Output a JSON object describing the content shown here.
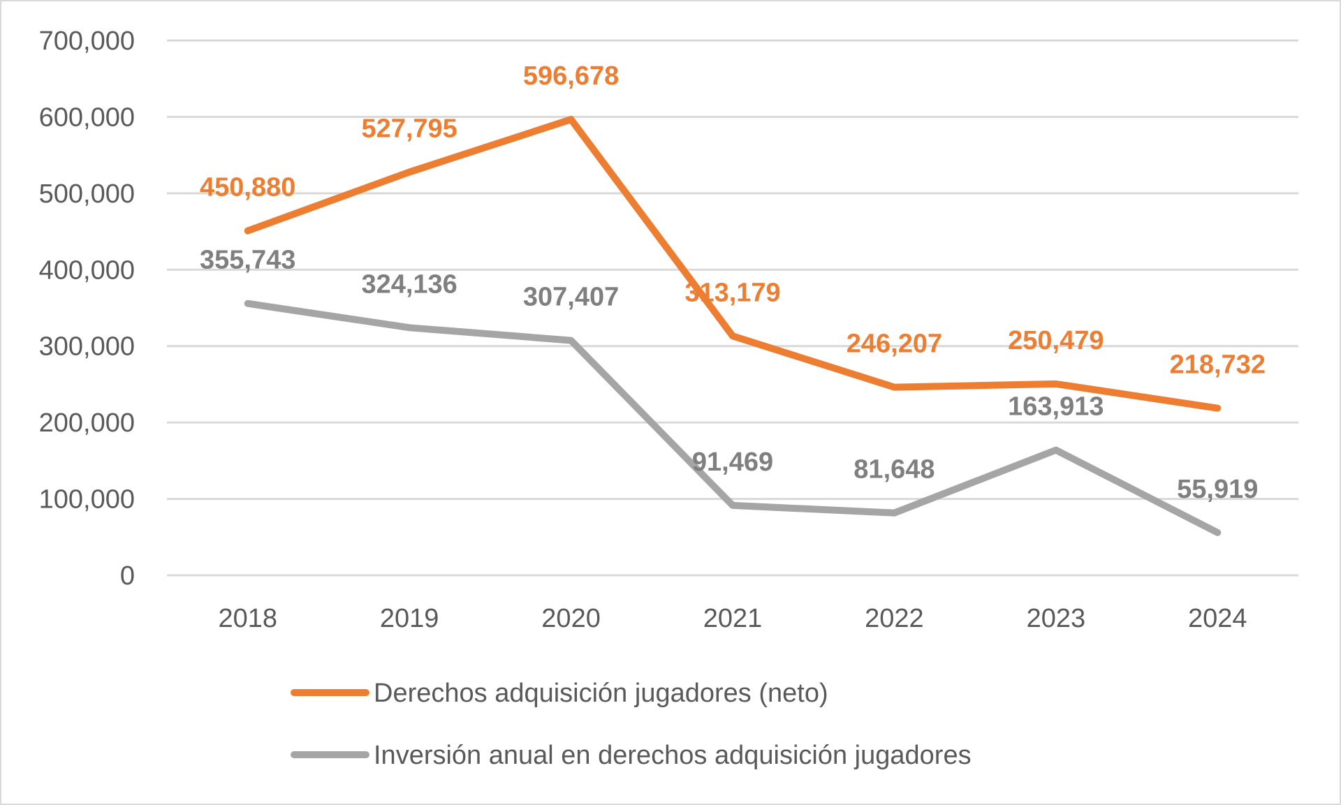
{
  "chart_data": {
    "type": "line",
    "title": "",
    "xlabel": "",
    "ylabel": "",
    "categories": [
      "2018",
      "2019",
      "2020",
      "2021",
      "2022",
      "2023",
      "2024"
    ],
    "ylim": [
      0,
      700000
    ],
    "yticks": [
      0,
      100000,
      200000,
      300000,
      400000,
      500000,
      600000,
      700000
    ],
    "ytick_labels": [
      "0",
      "100,000",
      "200,000",
      "300,000",
      "400,000",
      "500,000",
      "600,000",
      "700,000"
    ],
    "grid": true,
    "legend_position": "bottom",
    "series": [
      {
        "name": "Derechos adquisición jugadores (neto)",
        "color": "#ed7d31",
        "values": [
          450880,
          527795,
          596678,
          313179,
          246207,
          250479,
          218732
        ],
        "labels": [
          "450,880",
          "527,795",
          "596,678",
          "313,179",
          "246,207",
          "250,479",
          "218,732"
        ]
      },
      {
        "name": "Inversión anual en derechos adquisición jugadores",
        "color": "#a5a5a5",
        "label_color": "#7f7f7f",
        "values": [
          355743,
          324136,
          307407,
          91469,
          81648,
          163913,
          55919
        ],
        "labels": [
          "355,743",
          "324,136",
          "307,407",
          "91,469",
          "81,648",
          "163,913",
          "55,919"
        ]
      }
    ]
  }
}
